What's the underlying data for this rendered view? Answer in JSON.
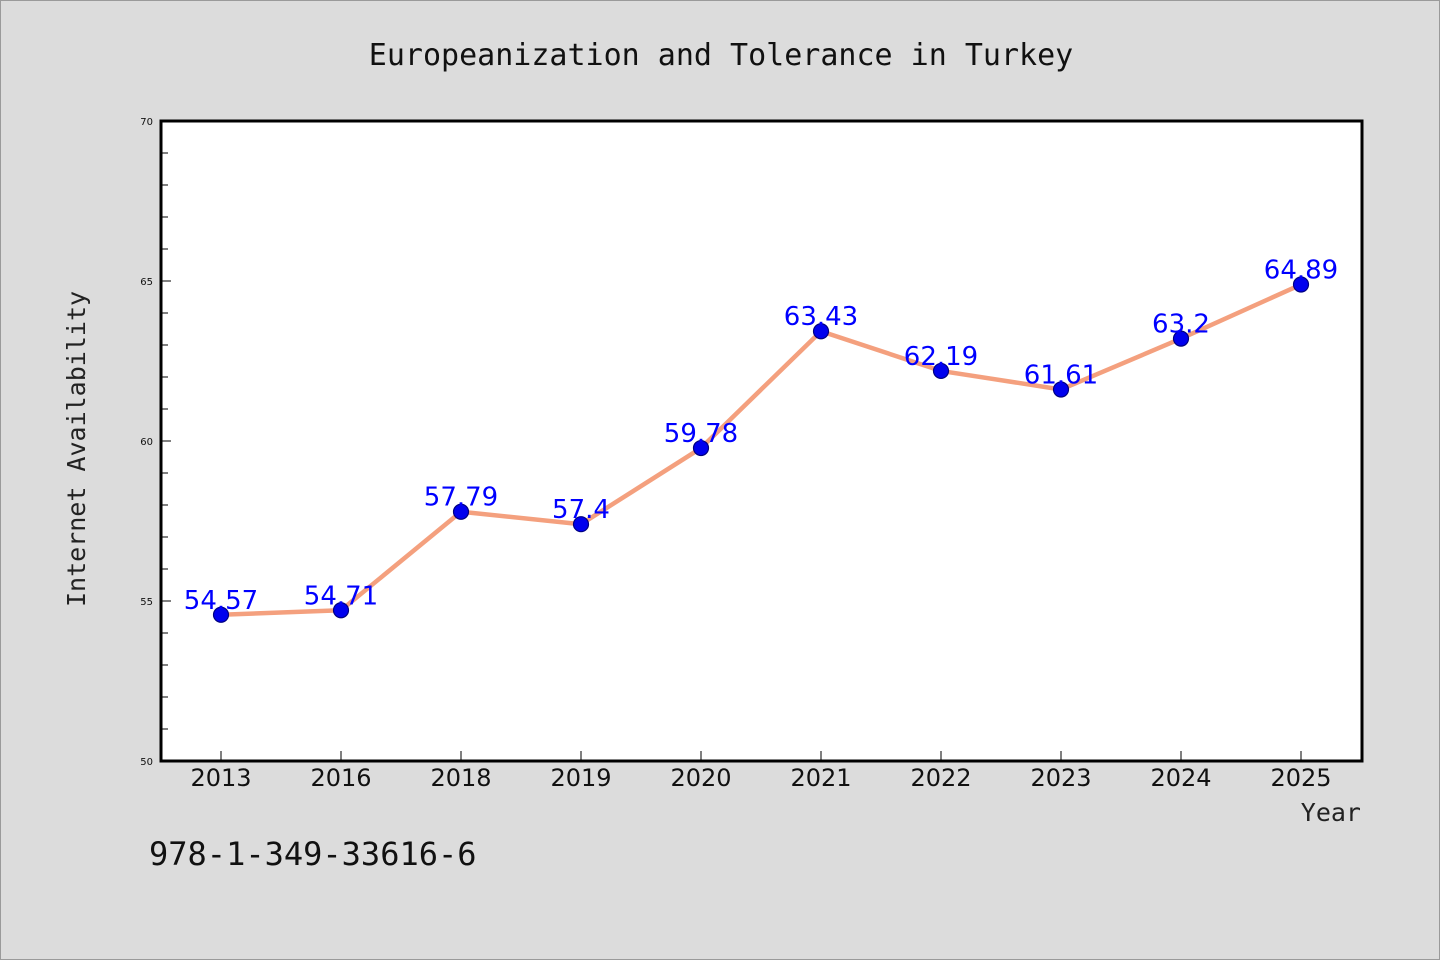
{
  "chart_data": {
    "type": "line",
    "title": "Europeanization and Tolerance in Turkey",
    "xlabel": "Year",
    "ylabel": "Internet Availability",
    "categories": [
      "2013",
      "2016",
      "2018",
      "2019",
      "2020",
      "2021",
      "2022",
      "2023",
      "2024",
      "2025"
    ],
    "series": [
      {
        "values": [
          54.57,
          54.71,
          57.79,
          57.4,
          59.78,
          63.43,
          62.19,
          61.61,
          63.2,
          64.89
        ],
        "labels": [
          "54.57",
          "54.71",
          "57.79",
          "57.4",
          "59.78",
          "63.43",
          "62.19",
          "61.61",
          "63.2",
          "64.89"
        ]
      }
    ],
    "ylim": [
      50,
      70
    ],
    "yticks": [
      "50",
      "55",
      "60",
      "65",
      "70"
    ],
    "grid": false,
    "legend": "none",
    "colors": {
      "line": "#f4a07e",
      "marker": "#0000ee",
      "marker_edge": "#000080",
      "data_label": "#0000ff",
      "plot_background": "#ffffff",
      "figure_background": "#dcdcdc"
    }
  },
  "footnote": "978-1-349-33616-6"
}
